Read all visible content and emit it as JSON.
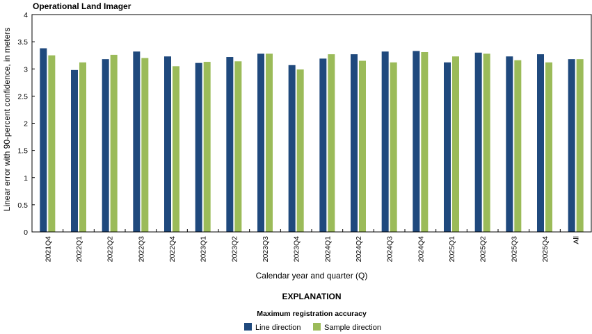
{
  "chart_data": {
    "type": "bar",
    "title": "Operational Land Imager",
    "xlabel": "Calendar year and quarter (Q)",
    "ylabel": "Linear error with 90-percent confidence, in meters",
    "ylim": [
      0,
      4
    ],
    "yticks": [
      "0",
      "0.5",
      "1",
      "1.5",
      "2",
      "2.5",
      "3",
      "3.5",
      "4"
    ],
    "categories": [
      "2021Q4",
      "2022Q1",
      "2022Q2",
      "2022Q3",
      "2022Q4",
      "2023Q1",
      "2023Q2",
      "2023Q3",
      "2023Q4",
      "2024Q1",
      "2024Q2",
      "2024Q3",
      "2024Q4",
      "2025Q1",
      "2025Q2",
      "2025Q3",
      "2025Q4",
      "All"
    ],
    "series": [
      {
        "name": "Line direction",
        "color": "#1f497d",
        "values": [
          3.38,
          2.98,
          3.18,
          3.32,
          3.23,
          3.11,
          3.22,
          3.28,
          3.07,
          3.19,
          3.27,
          3.32,
          3.33,
          3.12,
          3.3,
          3.23,
          3.27,
          3.18
        ]
      },
      {
        "name": "Sample direction",
        "color": "#9bbb59",
        "values": [
          3.25,
          3.12,
          3.26,
          3.2,
          3.05,
          3.13,
          3.14,
          3.28,
          2.99,
          3.27,
          3.15,
          3.12,
          3.31,
          3.23,
          3.28,
          3.16,
          3.12,
          3.18
        ]
      }
    ],
    "grid": false,
    "legend_placement": "bottom-center",
    "explanation_title": "EXPLANATION",
    "explanation_subtitle": "Maximum registration accuracy"
  }
}
